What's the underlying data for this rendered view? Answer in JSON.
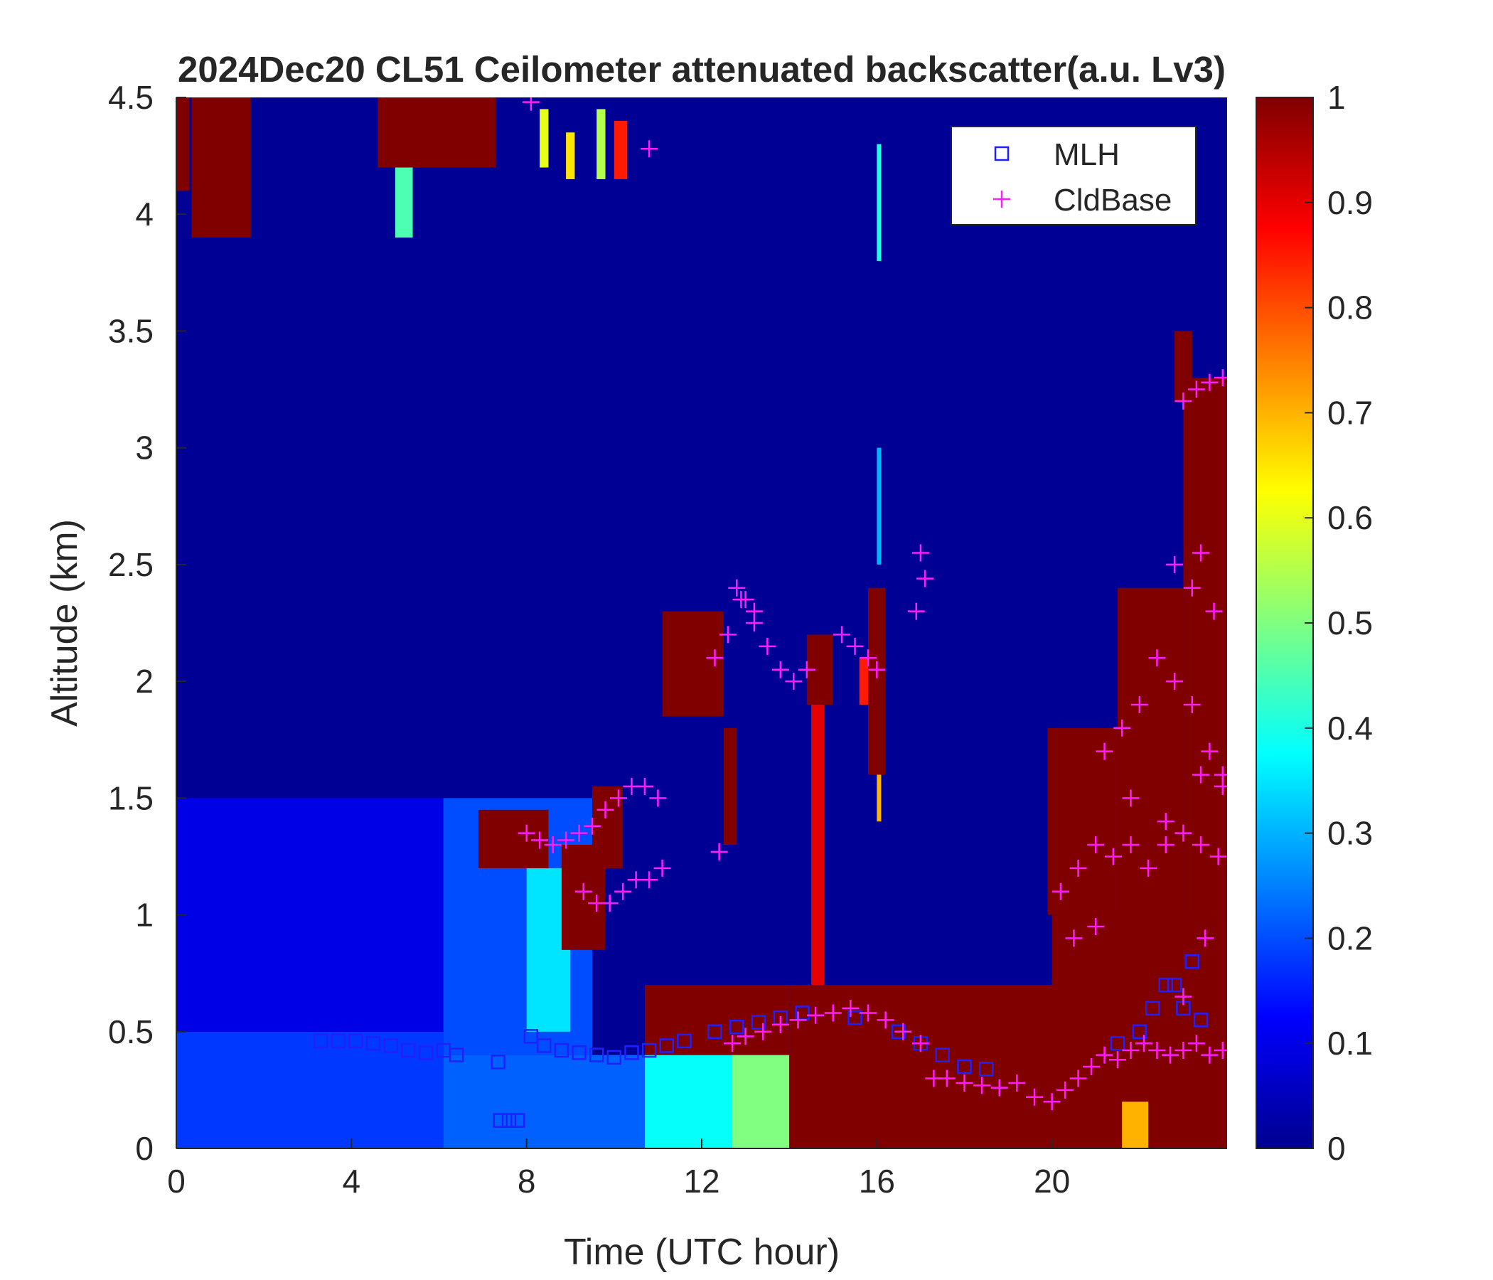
{
  "chart_data": {
    "type": "heatmap",
    "title": "2024Dec20 CL51 Ceilometer attenuated backscatter(a.u. Lv3)",
    "xlabel": "Time (UTC hour)",
    "ylabel": "Altitude (km)",
    "xlim": [
      0,
      24
    ],
    "ylim": [
      0,
      4.5
    ],
    "x_ticks": [
      0,
      4,
      8,
      12,
      16,
      20
    ],
    "y_ticks": [
      0,
      0.5,
      1,
      1.5,
      2,
      2.5,
      3,
      3.5,
      4,
      4.5
    ],
    "colorbar": {
      "colormap": "jet",
      "range": [
        0,
        1
      ],
      "ticks": [
        0,
        0.1,
        0.2,
        0.3,
        0.4,
        0.5,
        0.6,
        0.7,
        0.8,
        0.9,
        1
      ],
      "colors": [
        "#00008f",
        "#0000ff",
        "#0080ff",
        "#00ffff",
        "#80ff80",
        "#ffff00",
        "#ff8000",
        "#ff0000",
        "#800000"
      ]
    },
    "legend": {
      "position": "top-right",
      "entries": [
        {
          "name": "MLH",
          "marker": "square",
          "color": "#2020ff"
        },
        {
          "name": "CldBase",
          "marker": "plus",
          "color": "#ff1dff"
        }
      ]
    },
    "background_value": 0.02,
    "regions": [
      {
        "x": [
          0.0,
          0.3
        ],
        "y": [
          4.1,
          4.5
        ],
        "value": 1.0
      },
      {
        "x": [
          0.35,
          1.7
        ],
        "y": [
          3.9,
          4.5
        ],
        "value": 1.0
      },
      {
        "x": [
          4.6,
          7.3
        ],
        "y": [
          4.2,
          4.5
        ],
        "value": 1.0
      },
      {
        "x": [
          5.0,
          5.4
        ],
        "y": [
          3.9,
          4.2
        ],
        "value": 0.45
      },
      {
        "x": [
          8.3,
          8.5
        ],
        "y": [
          4.2,
          4.45
        ],
        "value": 0.6
      },
      {
        "x": [
          8.9,
          9.1
        ],
        "y": [
          4.15,
          4.35
        ],
        "value": 0.65
      },
      {
        "x": [
          9.6,
          9.8
        ],
        "y": [
          4.15,
          4.45
        ],
        "value": 0.55
      },
      {
        "x": [
          10.0,
          10.3
        ],
        "y": [
          4.15,
          4.4
        ],
        "value": 0.85
      },
      {
        "x": [
          0.0,
          6.1
        ],
        "y": [
          0.0,
          0.5
        ],
        "value": 0.18
      },
      {
        "x": [
          0.0,
          6.1
        ],
        "y": [
          0.5,
          1.5
        ],
        "value": 0.1
      },
      {
        "x": [
          6.1,
          10.7
        ],
        "y": [
          0.0,
          0.4
        ],
        "value": 0.22
      },
      {
        "x": [
          6.1,
          9.5
        ],
        "y": [
          0.4,
          1.5
        ],
        "value": 0.2
      },
      {
        "x": [
          8.0,
          9.0
        ],
        "y": [
          0.5,
          1.2
        ],
        "value": 0.35
      },
      {
        "x": [
          10.7,
          14.0
        ],
        "y": [
          0.0,
          0.4
        ],
        "value": 0.38
      },
      {
        "x": [
          12.7,
          14.0
        ],
        "y": [
          0.0,
          0.4
        ],
        "value": 0.5
      },
      {
        "x": [
          6.9,
          8.5
        ],
        "y": [
          1.2,
          1.45
        ],
        "value": 1.0
      },
      {
        "x": [
          8.8,
          9.8
        ],
        "y": [
          0.85,
          1.3
        ],
        "value": 1.0
      },
      {
        "x": [
          9.5,
          10.2
        ],
        "y": [
          1.2,
          1.55
        ],
        "value": 1.0
      },
      {
        "x": [
          11.1,
          12.5
        ],
        "y": [
          1.85,
          2.3
        ],
        "value": 1.0
      },
      {
        "x": [
          12.5,
          12.8
        ],
        "y": [
          1.3,
          1.8
        ],
        "value": 1.0
      },
      {
        "x": [
          14.4,
          15.0
        ],
        "y": [
          1.9,
          2.2
        ],
        "value": 1.0
      },
      {
        "x": [
          14.5,
          14.8
        ],
        "y": [
          0.7,
          1.9
        ],
        "value": 0.9
      },
      {
        "x": [
          15.6,
          15.8
        ],
        "y": [
          1.9,
          2.1
        ],
        "value": 0.85
      },
      {
        "x": [
          15.8,
          16.2
        ],
        "y": [
          1.6,
          2.4
        ],
        "value": 1.0
      },
      {
        "x": [
          16.0,
          16.1
        ],
        "y": [
          1.4,
          1.6
        ],
        "value": 0.7
      },
      {
        "x": [
          10.7,
          14.0
        ],
        "y": [
          0.4,
          0.7
        ],
        "value": 1.0
      },
      {
        "x": [
          14.0,
          20.0
        ],
        "y": [
          0.0,
          0.7
        ],
        "value": 1.0
      },
      {
        "x": [
          20.0,
          24.0
        ],
        "y": [
          0.0,
          1.0
        ],
        "value": 1.0
      },
      {
        "x": [
          21.6,
          22.2
        ],
        "y": [
          0.0,
          0.2
        ],
        "value": 0.7
      },
      {
        "x": [
          19.9,
          21.5
        ],
        "y": [
          1.0,
          1.8
        ],
        "value": 1.0
      },
      {
        "x": [
          21.5,
          23.0
        ],
        "y": [
          1.0,
          2.4
        ],
        "value": 1.0
      },
      {
        "x": [
          23.0,
          24.0
        ],
        "y": [
          1.0,
          3.3
        ],
        "value": 1.0
      },
      {
        "x": [
          22.8,
          23.2
        ],
        "y": [
          3.2,
          3.5
        ],
        "value": 1.0
      },
      {
        "x": [
          16.0,
          16.1
        ],
        "y": [
          2.5,
          3.0
        ],
        "value": 0.3
      },
      {
        "x": [
          16.0,
          16.1
        ],
        "y": [
          3.8,
          4.3
        ],
        "value": 0.4
      }
    ],
    "series": [
      {
        "name": "MLH",
        "x": [
          3.3,
          3.7,
          4.1,
          4.5,
          4.9,
          5.3,
          5.7,
          6.1,
          6.4,
          7.35,
          7.4,
          7.6,
          7.8,
          8.1,
          8.4,
          8.8,
          9.2,
          9.6,
          10.0,
          10.4,
          10.8,
          11.2,
          11.6,
          12.3,
          12.8,
          13.3,
          13.8,
          14.3,
          15.5,
          16.5,
          17.0,
          17.5,
          18.0,
          18.5,
          21.5,
          22.0,
          22.3,
          22.6,
          22.8,
          23.0,
          23.2,
          23.4
        ],
        "y": [
          0.46,
          0.46,
          0.46,
          0.45,
          0.44,
          0.42,
          0.41,
          0.42,
          0.4,
          0.37,
          0.12,
          0.12,
          0.12,
          0.48,
          0.44,
          0.42,
          0.41,
          0.4,
          0.39,
          0.41,
          0.42,
          0.44,
          0.46,
          0.5,
          0.52,
          0.54,
          0.56,
          0.58,
          0.56,
          0.5,
          0.45,
          0.4,
          0.35,
          0.34,
          0.45,
          0.5,
          0.6,
          0.7,
          0.7,
          0.6,
          0.8,
          0.55
        ]
      },
      {
        "name": "CldBase",
        "x": [
          8.1,
          10.8,
          8.0,
          8.3,
          8.6,
          8.9,
          9.2,
          9.5,
          9.8,
          10.1,
          10.4,
          10.7,
          11.0,
          9.3,
          9.6,
          9.9,
          10.2,
          10.5,
          10.8,
          11.1,
          12.3,
          12.6,
          12.9,
          13.2,
          13.5,
          13.8,
          14.1,
          14.4,
          12.8,
          13.0,
          13.2,
          12.4,
          15.2,
          15.5,
          15.8,
          16.0,
          16.9,
          17.0,
          17.1,
          12.7,
          13.0,
          13.4,
          13.8,
          14.2,
          14.6,
          15.0,
          15.4,
          15.8,
          16.2,
          16.6,
          17.0,
          17.3,
          17.6,
          18.0,
          18.4,
          18.8,
          19.2,
          19.6,
          20.0,
          20.3,
          20.6,
          20.9,
          21.2,
          21.5,
          21.8,
          22.1,
          22.4,
          22.7,
          23.0,
          23.3,
          23.6,
          23.9,
          20.2,
          20.6,
          21.0,
          21.4,
          21.8,
          22.2,
          22.6,
          23.0,
          23.4,
          23.8,
          23.0,
          23.3,
          23.6,
          23.9,
          22.8,
          23.2,
          23.4,
          23.7,
          21.6,
          22.0,
          22.4,
          22.8,
          23.2,
          23.6,
          23.9,
          21.2,
          21.8,
          22.6,
          23.4,
          20.5,
          21.0,
          23.0,
          23.5,
          23.9
        ],
        "y": [
          4.48,
          4.28,
          1.35,
          1.32,
          1.3,
          1.32,
          1.35,
          1.38,
          1.45,
          1.5,
          1.55,
          1.55,
          1.5,
          1.1,
          1.05,
          1.05,
          1.1,
          1.15,
          1.15,
          1.2,
          2.1,
          2.2,
          2.35,
          2.3,
          2.15,
          2.05,
          2.0,
          2.05,
          2.4,
          2.35,
          2.25,
          1.27,
          2.2,
          2.15,
          2.1,
          2.05,
          2.3,
          2.55,
          2.44,
          0.45,
          0.48,
          0.5,
          0.53,
          0.55,
          0.57,
          0.58,
          0.6,
          0.58,
          0.55,
          0.5,
          0.45,
          0.3,
          0.3,
          0.28,
          0.27,
          0.26,
          0.28,
          0.22,
          0.2,
          0.25,
          0.3,
          0.35,
          0.4,
          0.38,
          0.42,
          0.45,
          0.42,
          0.4,
          0.42,
          0.45,
          0.4,
          0.42,
          1.1,
          1.2,
          1.3,
          1.25,
          1.3,
          1.2,
          1.3,
          1.35,
          1.3,
          1.25,
          3.2,
          3.25,
          3.28,
          3.3,
          2.5,
          2.4,
          2.55,
          2.3,
          1.8,
          1.9,
          2.1,
          2.0,
          1.9,
          1.7,
          1.55,
          1.7,
          1.5,
          1.4,
          1.6,
          0.9,
          0.95,
          0.65,
          0.9,
          1.6
        ]
      }
    ]
  }
}
